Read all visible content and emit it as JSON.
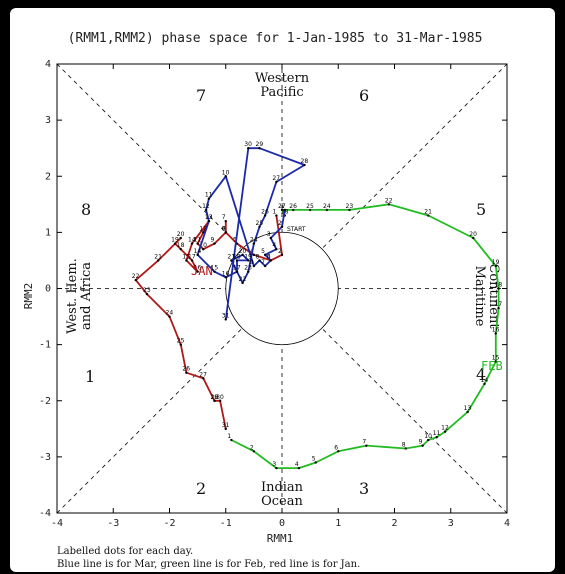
{
  "chart_data": {
    "type": "line",
    "title": "(RMM1,RMM2) phase space for  1-Jan-1985 to 31-Mar-1985",
    "xlabel": "RMM1",
    "ylabel": "RMM2",
    "xlim": [
      -4,
      4
    ],
    "ylim": [
      -4,
      4
    ],
    "x_ticks": [
      "-4",
      "-3",
      "-2",
      "-1",
      "0",
      "1",
      "2",
      "3",
      "4"
    ],
    "y_ticks": [
      "4",
      "3",
      "2",
      "1",
      "0",
      "-1",
      "-2",
      "-3",
      "-4"
    ],
    "phase_numbers": [
      "1",
      "2",
      "3",
      "4",
      "5",
      "6",
      "7",
      "8"
    ],
    "regions": {
      "top": [
        "Western",
        "Pacific"
      ],
      "bottom": [
        "Indian",
        "Ocean"
      ],
      "left": [
        "West. Hem.",
        "and Africa"
      ],
      "right": [
        "Maritime",
        "Continent"
      ]
    },
    "start_label": "START",
    "month_labels": {
      "jan": "JAN",
      "feb": "FEB"
    },
    "footnote": [
      "Labelled dots for each day.",
      "Blue line is for Mar, green line is for Feb, red line is for Jan."
    ],
    "colors": {
      "jan": "#b01818",
      "feb": "#22bb22",
      "mar": "#1a2aa8"
    },
    "series": [
      {
        "month": "Jan",
        "points": [
          [
            -0.1,
            1.3,
            "1"
          ],
          [
            0.0,
            0.6,
            "2"
          ],
          [
            -0.2,
            0.5,
            "3"
          ],
          [
            -0.5,
            0.6,
            "4"
          ],
          [
            -0.8,
            0.8,
            "5"
          ],
          [
            -1.0,
            1.0,
            "6"
          ],
          [
            -1.0,
            1.2,
            "7"
          ],
          [
            -1.0,
            1.0,
            "8"
          ],
          [
            -1.2,
            0.8,
            "9"
          ],
          [
            -1.4,
            0.7,
            "10"
          ],
          [
            -1.5,
            0.8,
            "11"
          ],
          [
            -1.4,
            1.0,
            "12"
          ],
          [
            -1.3,
            1.2,
            "13"
          ],
          [
            -1.6,
            0.8,
            "14"
          ],
          [
            -1.7,
            0.5,
            "15"
          ],
          [
            -1.5,
            0.3,
            "16"
          ],
          [
            -1.6,
            0.5,
            "17"
          ],
          [
            -1.8,
            0.7,
            "18"
          ],
          [
            -1.9,
            0.8,
            "19"
          ],
          [
            -1.8,
            0.9,
            "20"
          ],
          [
            -2.2,
            0.5,
            "21"
          ],
          [
            -2.6,
            0.15,
            "22"
          ],
          [
            -2.4,
            -0.1,
            "23"
          ],
          [
            -2.0,
            -0.5,
            "24"
          ],
          [
            -1.8,
            -1.0,
            "25"
          ],
          [
            -1.7,
            -1.5,
            "26"
          ],
          [
            -1.4,
            -1.6,
            "27"
          ],
          [
            -1.2,
            -2.0,
            "28"
          ],
          [
            -1.2,
            -2.0,
            "29"
          ],
          [
            -1.1,
            -2.0,
            "30"
          ],
          [
            -1.0,
            -2.5,
            "31"
          ]
        ]
      },
      {
        "month": "Feb",
        "points": [
          [
            -0.9,
            -2.7,
            "1"
          ],
          [
            -0.5,
            -2.9,
            "2"
          ],
          [
            -0.1,
            -3.2,
            "3"
          ],
          [
            0.3,
            -3.2,
            "4"
          ],
          [
            0.6,
            -3.1,
            "5"
          ],
          [
            1.0,
            -2.9,
            "6"
          ],
          [
            1.5,
            -2.8,
            "7"
          ],
          [
            2.2,
            -2.85,
            "8"
          ],
          [
            2.5,
            -2.8,
            "9"
          ],
          [
            2.6,
            -2.7,
            "10"
          ],
          [
            2.75,
            -2.65,
            "11"
          ],
          [
            2.9,
            -2.55,
            "12"
          ],
          [
            3.3,
            -2.2,
            "13"
          ],
          [
            3.6,
            -1.7,
            "14"
          ],
          [
            3.8,
            -1.3,
            "15"
          ],
          [
            3.8,
            -0.8,
            "16"
          ],
          [
            3.85,
            -0.35,
            "17"
          ],
          [
            3.85,
            0.0,
            "18"
          ],
          [
            3.8,
            0.4,
            "19"
          ],
          [
            3.4,
            0.9,
            "20"
          ],
          [
            2.6,
            1.3,
            "21"
          ],
          [
            1.9,
            1.5,
            "22"
          ],
          [
            1.2,
            1.4,
            "23"
          ],
          [
            0.8,
            1.4,
            "24"
          ],
          [
            0.5,
            1.4,
            "25"
          ],
          [
            0.2,
            1.4,
            "26"
          ],
          [
            0.0,
            1.4,
            "27"
          ],
          [
            0.05,
            1.3,
            "28"
          ]
        ]
      },
      {
        "month": "Mar",
        "points": [
          [
            0.05,
            1.4,
            "1"
          ],
          [
            0.0,
            1.1,
            "2"
          ],
          [
            -0.2,
            0.9,
            "3"
          ],
          [
            -0.1,
            0.7,
            "4"
          ],
          [
            -0.3,
            0.6,
            "5"
          ],
          [
            -0.2,
            0.5,
            "6"
          ],
          [
            -0.3,
            0.4,
            "7"
          ],
          [
            -0.4,
            0.5,
            "8"
          ],
          [
            -0.5,
            0.4,
            "9"
          ],
          [
            -1.0,
            2.0,
            "10"
          ],
          [
            -1.3,
            1.6,
            "11"
          ],
          [
            -1.35,
            1.4,
            "12"
          ],
          [
            -1.3,
            1.2,
            "13"
          ],
          [
            -1.5,
            0.6,
            "14"
          ],
          [
            -1.2,
            0.3,
            "15"
          ],
          [
            -1.0,
            0.2,
            "16"
          ],
          [
            -0.8,
            0.3,
            "17"
          ],
          [
            -0.8,
            0.5,
            "18"
          ],
          [
            -0.6,
            0.5,
            "19"
          ],
          [
            -0.7,
            0.6,
            "20"
          ],
          [
            -0.9,
            0.5,
            "21"
          ],
          [
            -0.7,
            0.1,
            "22"
          ],
          [
            -0.6,
            0.3,
            "23"
          ],
          [
            -0.5,
            0.8,
            "24"
          ],
          [
            -0.4,
            1.1,
            "25"
          ],
          [
            -0.3,
            1.3,
            "26"
          ],
          [
            -0.1,
            1.9,
            "27"
          ],
          [
            0.4,
            2.2,
            "28"
          ],
          [
            -0.4,
            2.5,
            "29"
          ],
          [
            -0.6,
            2.5,
            "30"
          ],
          [
            -1.0,
            -0.55,
            "31"
          ]
        ]
      }
    ]
  }
}
